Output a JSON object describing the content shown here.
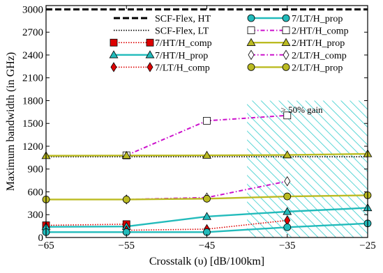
{
  "chart_data": {
    "type": "line",
    "xlabel": "Crosstalk (υ) [dB/100km]",
    "ylabel": "Maximum bandwidth (in GHz)",
    "xlim": [
      -65,
      -25
    ],
    "ylim": [
      0,
      3050
    ],
    "x_ticks": [
      -65,
      -55,
      -45,
      -35,
      -25
    ],
    "x_tick_labels": [
      "−65",
      "−55",
      "−45",
      "−35",
      "−25"
    ],
    "y_ticks": [
      0,
      300,
      600,
      900,
      1200,
      1500,
      1800,
      2100,
      2400,
      2700,
      3000
    ],
    "grid": false,
    "legend_position": "top",
    "gain_region": {
      "x_range": [
        -40,
        -25
      ],
      "y_range": [
        0,
        1800
      ],
      "label": "> 50% gain",
      "color": "#33cccc"
    },
    "series": [
      {
        "name": "SCF-Flex, HT",
        "color": "#000000",
        "style": "dashed",
        "marker": "none",
        "x": [
          -65,
          -25
        ],
        "y": [
          3000,
          3000
        ]
      },
      {
        "name": "SCF-Flex, LT",
        "color": "#000000",
        "style": "dotted",
        "marker": "none",
        "x": [
          -65,
          -25
        ],
        "y": [
          1062,
          1062
        ]
      },
      {
        "name": "7/HT/H_comp",
        "color": "#dd0000",
        "style": "dotted",
        "marker": "square",
        "filled": true,
        "x": [
          -65,
          -55
        ],
        "y": [
          160,
          175
        ]
      },
      {
        "name": "7/HT/H_prop",
        "color": "#22bbbb",
        "style": "solid",
        "marker": "triangle",
        "filled": true,
        "x": [
          -65,
          -55,
          -45,
          -35,
          -25
        ],
        "y": [
          140,
          145,
          275,
          340,
          390
        ]
      },
      {
        "name": "7/LT/H_comp",
        "color": "#dd0000",
        "style": "dotted",
        "marker": "diamond",
        "filled": true,
        "x": [
          -55,
          -45,
          -35
        ],
        "y": [
          95,
          110,
          225
        ]
      },
      {
        "name": "7/LT/H_prop",
        "color": "#22bbbb",
        "style": "solid",
        "marker": "circle",
        "filled": true,
        "x": [
          -65,
          -55,
          -45,
          -35,
          -25
        ],
        "y": [
          70,
          70,
          70,
          135,
          185
        ]
      },
      {
        "name": "2/HT/H_comp",
        "color": "#cc11cc",
        "style": "dashdot",
        "marker": "square",
        "filled": false,
        "x": [
          -55,
          -45,
          -35
        ],
        "y": [
          1080,
          1535,
          1605
        ]
      },
      {
        "name": "2/HT/H_prop",
        "color": "#bbbb22",
        "style": "solid",
        "marker": "triangle",
        "filled": true,
        "x": [
          -65,
          -55,
          -45,
          -35,
          -25
        ],
        "y": [
          1075,
          1078,
          1080,
          1085,
          1100
        ]
      },
      {
        "name": "2/LT/H_comp",
        "color": "#cc11cc",
        "style": "dashdot",
        "marker": "diamond",
        "filled": false,
        "x": [
          -55,
          -45,
          -35
        ],
        "y": [
          500,
          525,
          740
        ]
      },
      {
        "name": "2/LT/H_prop",
        "color": "#bbbb22",
        "style": "solid",
        "marker": "circle",
        "filled": true,
        "x": [
          -65,
          -55,
          -45,
          -35,
          -25
        ],
        "y": [
          500,
          500,
          510,
          540,
          555
        ]
      }
    ]
  }
}
